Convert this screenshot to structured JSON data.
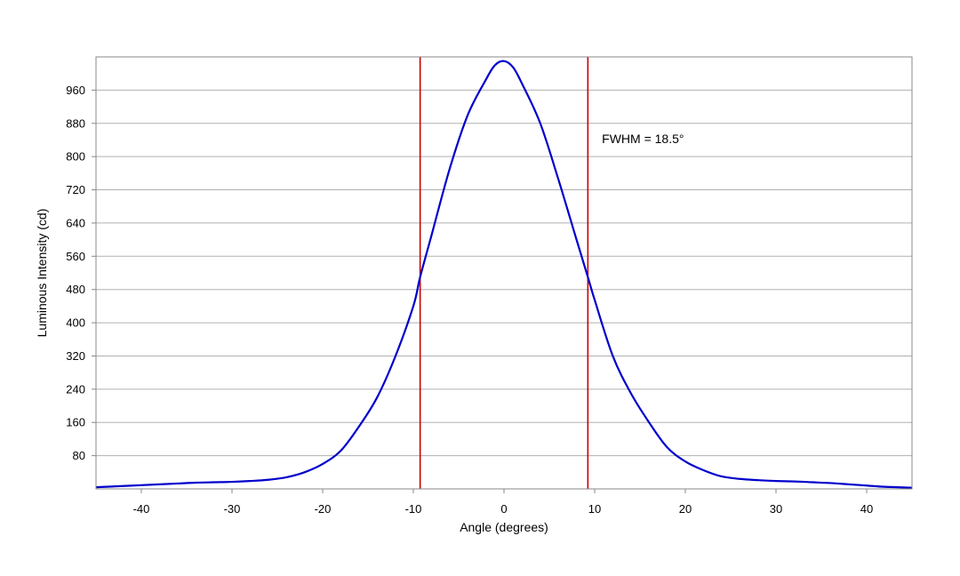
{
  "chart_data": {
    "type": "line",
    "title": "",
    "xlabel": "Angle (degrees)",
    "ylabel": "Luminous Intensity (cd)",
    "xlim": [
      -45,
      45
    ],
    "ylim": [
      0,
      1040
    ],
    "x_ticks": [
      -40,
      -30,
      -20,
      -10,
      0,
      10,
      20,
      30,
      40
    ],
    "y_ticks": [
      80,
      160,
      240,
      320,
      400,
      480,
      560,
      640,
      720,
      800,
      880,
      960
    ],
    "grid": "horizontal",
    "legend": "none",
    "colors": {
      "curve": "#0000cc",
      "fwhm_lines": "#cc0000",
      "grid": "#b0b0b0",
      "frame": "#888888"
    },
    "series": [
      {
        "x": [
          -45,
          -42,
          -40,
          -38,
          -36,
          -34,
          -32,
          -30,
          -28,
          -26,
          -24,
          -22,
          -20,
          -18,
          -16,
          -14,
          -12,
          -10,
          -9.25,
          -8,
          -6,
          -4,
          -2,
          -1,
          0,
          1,
          2,
          4,
          6,
          8,
          9.25,
          10,
          12,
          14,
          16,
          18,
          20,
          22,
          24,
          26,
          28,
          30,
          32,
          34,
          36,
          38,
          40,
          42,
          45
        ],
        "y": [
          4,
          7,
          9,
          11,
          13,
          15,
          16,
          17,
          19,
          22,
          28,
          40,
          60,
          92,
          150,
          220,
          318,
          440,
          510,
          610,
          770,
          900,
          985,
          1020,
          1030,
          1015,
          975,
          880,
          745,
          600,
          510,
          455,
          320,
          230,
          160,
          100,
          66,
          45,
          30,
          24,
          21,
          19,
          18,
          16,
          14,
          11,
          8,
          5,
          3
        ]
      }
    ],
    "fwhm_lines": [
      -9.25,
      9.25
    ],
    "annotations": [
      {
        "text": "FWHM = 18.5°",
        "x": 10.8,
        "y": 832
      }
    ]
  }
}
